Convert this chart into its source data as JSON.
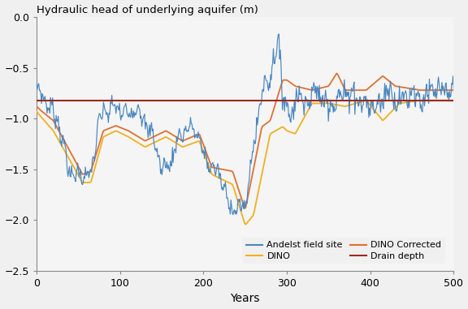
{
  "title": "Hydraulic head of underlying aquifer (m)",
  "xlabel": "Years",
  "xlim": [
    0,
    500
  ],
  "ylim": [
    -2.5,
    0
  ],
  "yticks": [
    0,
    -0.5,
    -1.0,
    -1.5,
    -2.0,
    -2.5
  ],
  "xticks": [
    0,
    100,
    200,
    300,
    400,
    500
  ],
  "drain_depth": -0.82,
  "colors": {
    "andelst": "#4a86c0",
    "dino": "#f0b020",
    "dino_corrected": "#e07030",
    "drain": "#9b2a20"
  },
  "background_color": "#f0f0f0",
  "plot_bg": "#f5f5f5",
  "legend_labels": [
    "Andelst field site",
    "DINO",
    "DINO Corrected",
    "Drain depth"
  ],
  "andelst_knots_t": [
    0,
    5,
    15,
    25,
    40,
    55,
    65,
    75,
    90,
    100,
    110,
    120,
    130,
    140,
    150,
    160,
    170,
    180,
    190,
    200,
    210,
    220,
    230,
    240,
    250,
    255,
    260,
    270,
    280,
    285,
    290,
    295,
    300,
    305,
    310,
    315,
    320,
    325,
    330,
    335,
    340,
    350,
    360,
    370,
    380,
    390,
    395,
    400,
    410,
    415,
    420,
    430,
    440,
    450,
    460,
    470,
    480,
    490,
    500
  ],
  "andelst_knots_v": [
    -0.72,
    -0.75,
    -0.88,
    -1.0,
    -1.55,
    -1.55,
    -1.57,
    -1.0,
    -0.88,
    -0.92,
    -0.95,
    -0.88,
    -1.05,
    -1.18,
    -1.5,
    -1.45,
    -1.18,
    -1.1,
    -1.1,
    -1.35,
    -1.48,
    -1.55,
    -1.85,
    -1.88,
    -1.88,
    -1.55,
    -1.3,
    -0.72,
    -0.6,
    -0.35,
    -0.28,
    -0.75,
    -0.85,
    -1.05,
    -0.75,
    -0.78,
    -0.82,
    -0.82,
    -0.78,
    -0.72,
    -0.78,
    -0.85,
    -0.82,
    -0.75,
    -0.75,
    -0.85,
    -0.85,
    -0.88,
    -0.88,
    -0.8,
    -0.7,
    -0.8,
    -0.82,
    -0.72,
    -0.82,
    -0.75,
    -0.72,
    -0.75,
    -0.75
  ],
  "dino_knots_t": [
    0,
    5,
    20,
    55,
    65,
    80,
    95,
    110,
    130,
    155,
    175,
    195,
    210,
    235,
    250,
    260,
    280,
    295,
    300,
    310,
    330,
    350,
    370,
    395,
    415,
    435,
    460,
    480,
    500
  ],
  "dino_knots_v": [
    -0.93,
    -0.98,
    -1.12,
    -1.63,
    -1.63,
    -1.18,
    -1.12,
    -1.18,
    -1.28,
    -1.18,
    -1.28,
    -1.22,
    -1.55,
    -1.65,
    -2.05,
    -1.95,
    -1.15,
    -1.08,
    -1.12,
    -1.15,
    -0.85,
    -0.85,
    -0.88,
    -0.82,
    -1.02,
    -0.85,
    -0.82,
    -0.82,
    -0.82
  ],
  "dino_corr_knots_t": [
    0,
    5,
    20,
    55,
    65,
    80,
    95,
    110,
    130,
    155,
    175,
    195,
    210,
    235,
    250,
    260,
    270,
    280,
    295,
    300,
    310,
    330,
    350,
    360,
    370,
    395,
    415,
    430,
    460,
    480,
    500
  ],
  "dino_corr_knots_v": [
    -0.88,
    -0.92,
    -1.02,
    -1.55,
    -1.52,
    -1.12,
    -1.07,
    -1.12,
    -1.22,
    -1.12,
    -1.22,
    -1.15,
    -1.48,
    -1.52,
    -1.9,
    -1.5,
    -1.08,
    -1.02,
    -0.62,
    -0.62,
    -0.68,
    -0.72,
    -0.68,
    -0.55,
    -0.72,
    -0.72,
    -0.58,
    -0.68,
    -0.72,
    -0.72,
    -0.72
  ]
}
